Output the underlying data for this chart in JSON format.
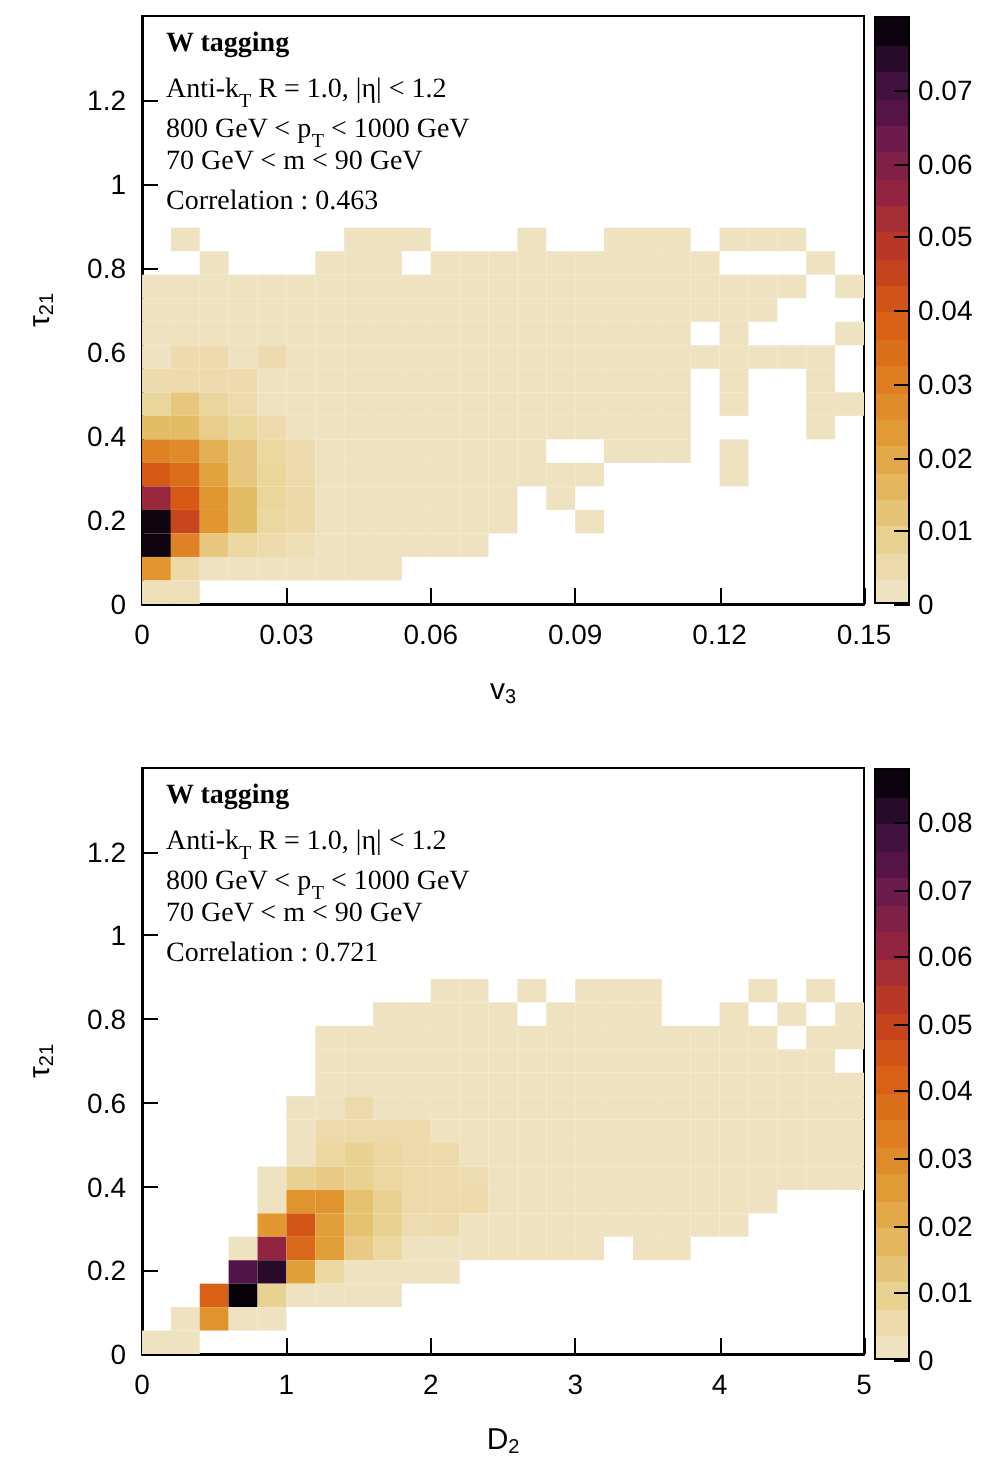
{
  "chart_data": [
    {
      "type": "heatmap",
      "title": "W tagging",
      "annotations": [
        "Anti-k$_{T}$ R = 1.0, |η| < 1.2",
        "800 GeV < p$_{T}$ < 1000 GeV",
        "70 GeV < m < 90 GeV",
        "Correlation : 0.463"
      ],
      "xlabel": "v$_{3}$",
      "ylabel": "τ$_{21}$",
      "x": [
        0.003,
        0.009,
        0.015,
        0.021,
        0.027,
        0.033,
        0.039,
        0.045,
        0.051,
        0.057,
        0.063,
        0.069,
        0.075,
        0.081,
        0.087,
        0.093,
        0.099,
        0.105,
        0.111,
        0.117,
        0.123,
        0.129,
        0.135,
        0.141,
        0.147
      ],
      "y": [
        0.868,
        0.812,
        0.756,
        0.7,
        0.644,
        0.588,
        0.532,
        0.476,
        0.42,
        0.364,
        0.308,
        0.252,
        0.196,
        0.14,
        0.084,
        0.028
      ],
      "xlim": [
        0,
        0.15
      ],
      "xticks": [
        0,
        0.03,
        0.06,
        0.09,
        0.12,
        0.15
      ],
      "ylim": [
        0,
        1.4
      ],
      "yticks": [
        0,
        0.2,
        0.4,
        0.6,
        0.8,
        1,
        1.2
      ],
      "clim": [
        0,
        0.08
      ],
      "cticks": [
        0,
        0.01,
        0.02,
        0.03,
        0.04,
        0.05,
        0.06,
        0.07
      ],
      "cells": [
        [
          null,
          0.002,
          null,
          null,
          null,
          null,
          null,
          0.002,
          0.002,
          0.002,
          null,
          null,
          null,
          0.002,
          null,
          null,
          0.002,
          0.002,
          0.002,
          null,
          0.002,
          0.002,
          0.002,
          null,
          null
        ],
        [
          null,
          null,
          0.002,
          null,
          null,
          null,
          0.002,
          0.002,
          0.002,
          null,
          0.002,
          0.002,
          0.002,
          0.002,
          0.002,
          0.002,
          0.002,
          0.002,
          0.002,
          0.002,
          null,
          null,
          null,
          0.002,
          null
        ],
        [
          0.002,
          0.002,
          0.002,
          0.002,
          0.002,
          0.002,
          0.002,
          0.002,
          0.002,
          0.002,
          0.002,
          0.002,
          0.002,
          0.002,
          0.002,
          0.002,
          0.002,
          0.002,
          0.002,
          0.002,
          0.002,
          0.002,
          0.002,
          null,
          0.002
        ],
        [
          0.002,
          0.002,
          0.002,
          0.002,
          0.002,
          0.002,
          0.002,
          0.002,
          0.002,
          0.002,
          0.002,
          0.002,
          0.002,
          0.002,
          0.002,
          0.002,
          0.002,
          0.002,
          0.002,
          0.002,
          0.002,
          0.002,
          null,
          null,
          null
        ],
        [
          0.002,
          0.002,
          0.002,
          0.002,
          0.002,
          0.002,
          0.002,
          0.002,
          0.002,
          0.002,
          0.002,
          0.002,
          0.002,
          0.002,
          0.002,
          0.002,
          0.002,
          0.002,
          0.002,
          null,
          0.002,
          null,
          null,
          null,
          0.002
        ],
        [
          0.002,
          0.005,
          0.005,
          0.002,
          0.005,
          0.002,
          0.002,
          0.002,
          0.002,
          0.002,
          0.002,
          0.002,
          0.002,
          0.002,
          0.002,
          0.002,
          0.002,
          0.002,
          0.002,
          0.002,
          0.002,
          0.002,
          0.002,
          0.002,
          null
        ],
        [
          0.005,
          0.005,
          0.005,
          0.005,
          0.002,
          0.002,
          0.002,
          0.002,
          0.002,
          0.002,
          0.002,
          0.002,
          0.002,
          0.002,
          0.002,
          0.002,
          0.002,
          0.002,
          0.002,
          null,
          0.002,
          null,
          null,
          0.002,
          null
        ],
        [
          0.008,
          0.012,
          0.008,
          0.005,
          0.002,
          0.002,
          0.002,
          0.002,
          0.002,
          0.002,
          0.002,
          0.002,
          0.002,
          0.002,
          0.002,
          0.002,
          0.002,
          0.002,
          0.002,
          null,
          0.002,
          null,
          null,
          0.002,
          0.002
        ],
        [
          0.015,
          0.015,
          0.01,
          0.008,
          0.005,
          0.002,
          0.002,
          0.002,
          0.002,
          0.002,
          0.002,
          0.002,
          0.002,
          0.002,
          0.002,
          0.002,
          0.002,
          0.002,
          0.002,
          null,
          null,
          null,
          null,
          0.002,
          null
        ],
        [
          0.03,
          0.028,
          0.018,
          0.012,
          0.007,
          0.005,
          0.002,
          0.002,
          0.002,
          0.002,
          0.002,
          0.002,
          0.002,
          0.002,
          null,
          null,
          0.002,
          0.002,
          0.002,
          null,
          0.002,
          null,
          null,
          null,
          null
        ],
        [
          0.04,
          0.035,
          0.022,
          0.012,
          0.008,
          0.005,
          0.002,
          0.002,
          0.002,
          0.002,
          0.002,
          0.002,
          0.002,
          0.002,
          0.002,
          0.002,
          null,
          null,
          null,
          null,
          0.002,
          null,
          null,
          null,
          null
        ],
        [
          0.055,
          0.04,
          0.025,
          0.015,
          0.008,
          0.006,
          0.002,
          0.002,
          0.002,
          0.002,
          0.002,
          0.002,
          0.002,
          null,
          0.002,
          null,
          null,
          null,
          null,
          null,
          null,
          null,
          null,
          null,
          null
        ],
        [
          0.078,
          0.045,
          0.025,
          0.015,
          0.007,
          0.006,
          0.002,
          0.002,
          0.002,
          0.002,
          0.002,
          0.002,
          0.002,
          null,
          null,
          0.002,
          null,
          null,
          null,
          null,
          null,
          null,
          null,
          null,
          null
        ],
        [
          0.078,
          0.03,
          0.012,
          0.007,
          0.005,
          0.004,
          0.002,
          0.002,
          0.002,
          0.002,
          0.002,
          0.002,
          null,
          null,
          null,
          null,
          null,
          null,
          null,
          null,
          null,
          null,
          null,
          null,
          null
        ],
        [
          0.025,
          0.006,
          0.002,
          0.002,
          0.002,
          0.002,
          0.002,
          0.002,
          0.002,
          null,
          null,
          null,
          null,
          null,
          null,
          null,
          null,
          null,
          null,
          null,
          null,
          null,
          null,
          null,
          null
        ],
        [
          0.003,
          0.003,
          null,
          null,
          null,
          null,
          null,
          null,
          null,
          null,
          null,
          null,
          null,
          null,
          null,
          null,
          null,
          null,
          null,
          null,
          null,
          null,
          null,
          null,
          null
        ]
      ]
    },
    {
      "type": "heatmap",
      "title": "W tagging",
      "annotations": [
        "Anti-k$_{T}$ R = 1.0, |η| < 1.2",
        "800 GeV < p$_{T}$ < 1000 GeV",
        "70 GeV < m < 90 GeV",
        "Correlation : 0.721"
      ],
      "xlabel": "D$_{2}$",
      "ylabel": "τ$_{21}$",
      "x": [
        0.1,
        0.3,
        0.5,
        0.7,
        0.9,
        1.1,
        1.3,
        1.5,
        1.7,
        1.9,
        2.1,
        2.3,
        2.5,
        2.7,
        2.9,
        3.1,
        3.3,
        3.5,
        3.7,
        3.9,
        4.1,
        4.3,
        4.5,
        4.7,
        4.9
      ],
      "y": [
        0.868,
        0.812,
        0.756,
        0.7,
        0.644,
        0.588,
        0.532,
        0.476,
        0.42,
        0.364,
        0.308,
        0.252,
        0.196,
        0.14,
        0.084,
        0.028
      ],
      "xlim": [
        0,
        5
      ],
      "xticks": [
        0,
        1,
        2,
        3,
        4,
        5
      ],
      "ylim": [
        0,
        1.4
      ],
      "yticks": [
        0,
        0.2,
        0.4,
        0.6,
        0.8,
        1,
        1.2
      ],
      "clim": [
        0,
        0.088
      ],
      "cticks": [
        0,
        0.01,
        0.02,
        0.03,
        0.04,
        0.05,
        0.06,
        0.07,
        0.08
      ],
      "cells": [
        [
          null,
          null,
          null,
          null,
          null,
          null,
          null,
          null,
          null,
          null,
          0.002,
          0.002,
          null,
          0.002,
          null,
          0.002,
          0.002,
          0.002,
          null,
          null,
          null,
          0.002,
          null,
          0.002,
          null
        ],
        [
          null,
          null,
          null,
          null,
          null,
          null,
          null,
          null,
          0.002,
          0.002,
          0.002,
          0.002,
          0.002,
          null,
          0.002,
          0.002,
          0.002,
          0.002,
          null,
          null,
          0.002,
          null,
          0.002,
          null,
          0.002
        ],
        [
          null,
          null,
          null,
          null,
          null,
          null,
          0.002,
          0.002,
          0.002,
          0.002,
          0.002,
          0.002,
          0.002,
          0.002,
          0.002,
          0.002,
          0.002,
          0.002,
          0.002,
          0.002,
          0.002,
          0.002,
          null,
          0.002,
          0.002
        ],
        [
          null,
          null,
          null,
          null,
          null,
          null,
          0.002,
          0.002,
          0.002,
          0.002,
          0.002,
          0.002,
          0.002,
          0.002,
          0.002,
          0.002,
          0.002,
          0.002,
          0.002,
          0.002,
          0.002,
          0.002,
          0.002,
          0.002,
          null
        ],
        [
          null,
          null,
          null,
          null,
          null,
          null,
          0.002,
          0.002,
          0.002,
          0.002,
          0.002,
          0.002,
          0.002,
          0.002,
          0.002,
          0.002,
          0.002,
          0.002,
          0.002,
          0.002,
          0.002,
          0.002,
          0.002,
          0.002,
          0.002
        ],
        [
          null,
          null,
          null,
          null,
          null,
          0.002,
          0.002,
          0.006,
          0.002,
          0.002,
          0.002,
          0.002,
          0.002,
          0.002,
          0.002,
          0.002,
          0.002,
          0.002,
          0.002,
          0.002,
          0.002,
          0.002,
          0.002,
          0.002,
          0.002
        ],
        [
          null,
          null,
          null,
          null,
          null,
          0.002,
          0.006,
          0.006,
          0.006,
          0.006,
          0.002,
          0.002,
          0.002,
          0.002,
          0.002,
          0.002,
          0.002,
          0.002,
          0.002,
          0.002,
          0.002,
          0.002,
          0.002,
          0.002,
          0.002
        ],
        [
          null,
          null,
          null,
          null,
          null,
          0.002,
          0.008,
          0.01,
          0.008,
          0.006,
          0.006,
          0.002,
          0.002,
          0.002,
          0.002,
          0.002,
          0.002,
          0.002,
          0.002,
          0.002,
          0.002,
          0.002,
          0.002,
          0.002,
          0.002
        ],
        [
          null,
          null,
          null,
          null,
          0.002,
          0.01,
          0.012,
          0.01,
          0.008,
          0.006,
          0.006,
          0.005,
          0.002,
          0.002,
          0.002,
          0.002,
          0.002,
          0.002,
          0.002,
          0.002,
          0.002,
          0.002,
          0.002,
          0.002,
          0.002
        ],
        [
          null,
          null,
          null,
          null,
          0.002,
          0.028,
          0.028,
          0.015,
          0.01,
          0.006,
          0.006,
          0.006,
          0.002,
          0.002,
          0.002,
          0.002,
          0.002,
          0.002,
          0.002,
          0.002,
          0.002,
          0.002,
          null,
          null,
          null
        ],
        [
          null,
          null,
          null,
          null,
          0.027,
          0.045,
          0.025,
          0.015,
          0.01,
          0.005,
          0.006,
          0.002,
          0.002,
          0.002,
          0.002,
          0.002,
          0.002,
          0.002,
          0.002,
          0.002,
          0.002,
          null,
          null,
          null,
          null
        ],
        [
          null,
          null,
          null,
          0.002,
          0.062,
          0.04,
          0.025,
          0.012,
          0.008,
          0.002,
          0.002,
          0.002,
          0.002,
          0.002,
          0.002,
          0.002,
          null,
          0.002,
          0.002,
          null,
          null,
          null,
          null,
          null,
          null
        ],
        [
          null,
          null,
          null,
          0.075,
          0.082,
          0.025,
          0.008,
          0.002,
          0.002,
          0.002,
          0.002,
          null,
          null,
          null,
          null,
          null,
          null,
          null,
          null,
          null,
          null,
          null,
          null,
          null,
          null
        ],
        [
          null,
          null,
          0.042,
          0.087,
          0.01,
          0.002,
          0.002,
          0.002,
          0.002,
          null,
          null,
          null,
          null,
          null,
          null,
          null,
          null,
          null,
          null,
          null,
          null,
          null,
          null,
          null,
          null
        ],
        [
          null,
          0.002,
          0.028,
          0.002,
          0.002,
          null,
          null,
          null,
          null,
          null,
          null,
          null,
          null,
          null,
          null,
          null,
          null,
          null,
          null,
          null,
          null,
          null,
          null,
          null,
          null
        ],
        [
          0.002,
          0.002,
          null,
          null,
          null,
          null,
          null,
          null,
          null,
          null,
          null,
          null,
          null,
          null,
          null,
          null,
          null,
          null,
          null,
          null,
          null,
          null,
          null,
          null,
          null
        ]
      ]
    }
  ]
}
